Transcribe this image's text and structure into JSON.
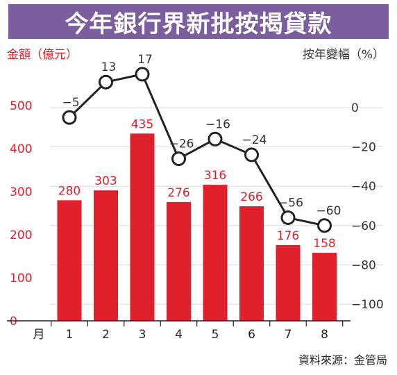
{
  "title": "今年銀行界新批按揭貸款",
  "left_axis_title": "金額（億元）",
  "right_axis_title": "按年變幅（%）",
  "source": "資料來源：金管局",
  "colors": {
    "bar": "#e0202a",
    "line": "#222222",
    "left_axis": "#e0202a",
    "right_axis": "#333333",
    "title_bg": "#7b5e9e"
  },
  "chart_data": {
    "type": "bar",
    "xlabel": "月",
    "categories": [
      "1",
      "2",
      "3",
      "4",
      "5",
      "6",
      "7",
      "8"
    ],
    "series": [
      {
        "name": "金額（億元）",
        "type": "bar",
        "axis": "left",
        "values": [
          280,
          303,
          435,
          276,
          316,
          266,
          176,
          158
        ]
      },
      {
        "name": "按年變幅（%）",
        "type": "line",
        "axis": "right",
        "values": [
          -5,
          13,
          17,
          -26,
          -16,
          -24,
          -56,
          -60
        ]
      }
    ],
    "left_ticks": [
      0,
      100,
      200,
      300,
      400,
      500
    ],
    "left_ylim": [
      0,
      500
    ],
    "right_ticks": [
      0,
      -20,
      -40,
      -60,
      -80,
      -100
    ],
    "right_ylim": [
      -100,
      0
    ],
    "grid": true
  }
}
